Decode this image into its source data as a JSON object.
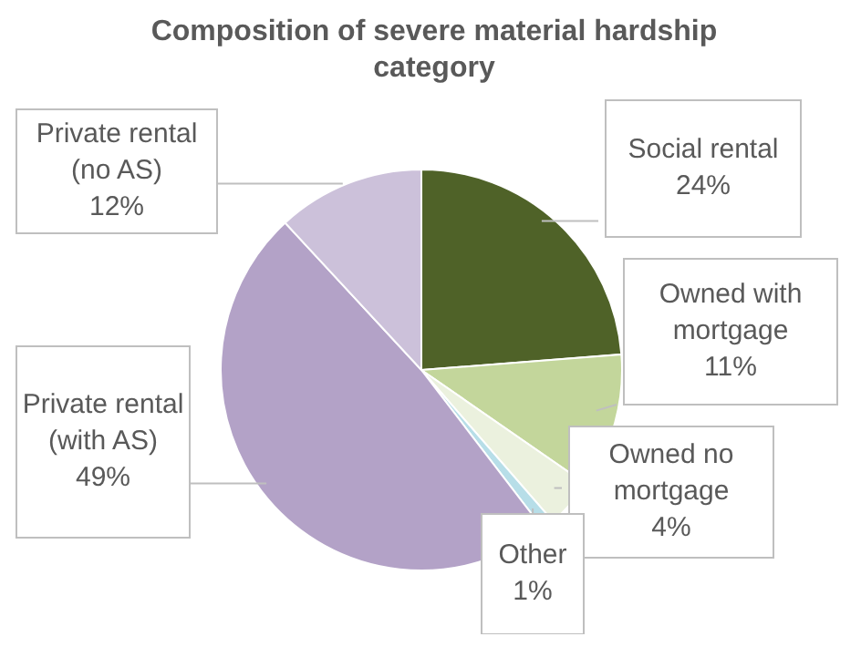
{
  "chart_data": {
    "type": "pie",
    "title": "Composition of severe material hardship category",
    "categories": [
      "Social rental",
      "Owned with mortgage",
      "Owned no mortgage",
      "Other",
      "Private rental (with AS)",
      "Private rental (no AS)"
    ],
    "values": [
      24,
      11,
      4,
      1,
      49,
      12
    ],
    "value_labels": [
      "24%",
      "11%",
      "4%",
      "1%",
      "49%",
      "12%"
    ],
    "colors": [
      "#4f6228",
      "#c3d69b",
      "#ebf1de",
      "#b7dee8",
      "#b3a2c7",
      "#ccc1da"
    ]
  }
}
